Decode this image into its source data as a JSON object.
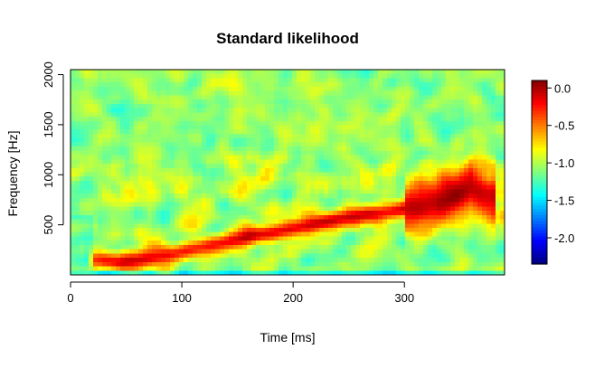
{
  "chart_data": {
    "type": "heatmap",
    "title": "Standard likelihood",
    "xlabel": "Time [ms]",
    "ylabel": "Frequency [Hz]",
    "xlim": [
      0,
      390
    ],
    "ylim": [
      0,
      2050
    ],
    "x_ticks": [
      0,
      100,
      200,
      300
    ],
    "y_ticks": [
      500,
      1000,
      1500,
      2000
    ],
    "colorbar": {
      "range": [
        -2.35,
        0.1
      ],
      "ticks": [
        0.0,
        -0.5,
        -1.0,
        -1.5,
        -2.0
      ],
      "tick_labels": [
        "0.0",
        "-0.5",
        "-1.0",
        "-1.5",
        "-2.0"
      ],
      "colormap": "jet",
      "colormap_stops": [
        "#00008f",
        "#0000ff",
        "#00ffff",
        "#ffff00",
        "#ff0000",
        "#800000"
      ]
    },
    "background_level": -1.05,
    "ridge": {
      "description": "high-likelihood band rising with time",
      "points": [
        {
          "t": 25,
          "f": 150,
          "level": -0.3
        },
        {
          "t": 45,
          "f": 120,
          "level": -0.1
        },
        {
          "t": 80,
          "f": 180,
          "level": -0.2
        },
        {
          "t": 120,
          "f": 280,
          "level": -0.25
        },
        {
          "t": 160,
          "f": 380,
          "level": -0.05
        },
        {
          "t": 200,
          "f": 460,
          "level": -0.15
        },
        {
          "t": 240,
          "f": 560,
          "level": -0.05
        },
        {
          "t": 280,
          "f": 620,
          "level": -0.2
        },
        {
          "t": 320,
          "f": 700,
          "level": 0.0
        },
        {
          "t": 345,
          "f": 780,
          "level": 0.05
        },
        {
          "t": 360,
          "f": 880,
          "level": 0.0
        },
        {
          "t": 375,
          "f": 760,
          "level": -0.1
        }
      ]
    },
    "regions": [
      {
        "label": "low band (bottom)",
        "t": [
          0,
          390
        ],
        "f": [
          0,
          60
        ],
        "level": -1.7
      },
      {
        "label": "left edge low",
        "t": [
          0,
          20
        ],
        "f": [
          0,
          600
        ],
        "level": -1.4
      },
      {
        "label": "high-frequency noise",
        "t": [
          0,
          390
        ],
        "f": [
          1200,
          2050
        ],
        "level": -1.1
      }
    ]
  },
  "colors": {
    "frame": "#000000",
    "background": "#ffffff"
  }
}
